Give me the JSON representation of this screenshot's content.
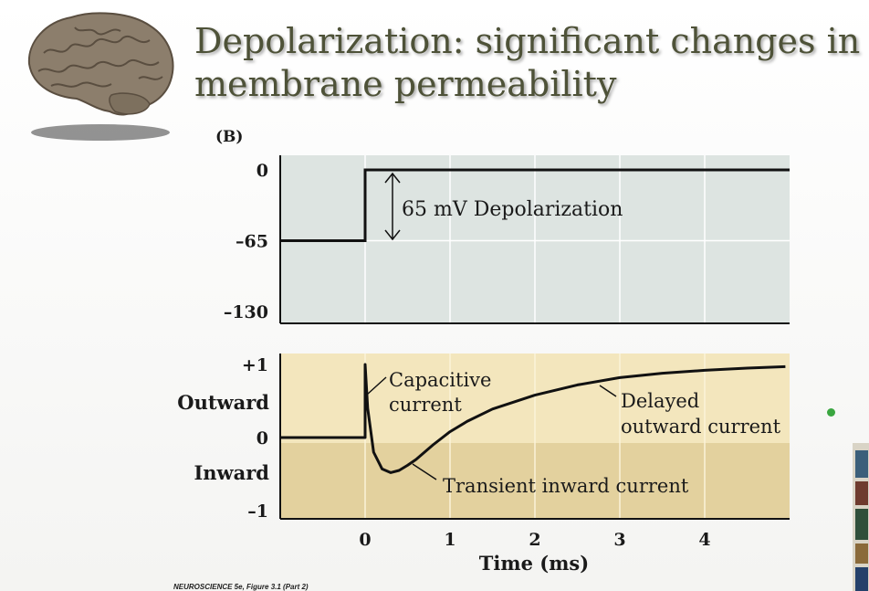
{
  "slide": {
    "title": "Depolarization: significant changes in membrane permeability",
    "caption": "NEUROSCIENCE 5e, Figure 3.1 (Part 2)"
  },
  "icons": {
    "logo": "brain-icon",
    "indicator": "green-dot-icon"
  },
  "colors": {
    "title": "#4e5238",
    "voltage_panel_bg": "#dde4e1",
    "current_upper_bg": "#f3e6bd",
    "current_lower_bg": "#e3d19e",
    "trace": "#111111",
    "indicator": "#3aa640"
  },
  "chart_data": [
    {
      "type": "line",
      "panel_label": "(B)",
      "x": [
        -1,
        0,
        0,
        5
      ],
      "y": [
        -65,
        -65,
        0,
        0
      ],
      "ylim": [
        -130,
        0
      ],
      "yticks": [
        "0",
        "–65",
        "–130"
      ],
      "annotations": [
        "65 mV Depolarization"
      ],
      "grid": true
    },
    {
      "type": "line",
      "x": [
        -1,
        0,
        0,
        0.03,
        0.1,
        0.2,
        0.3,
        0.4,
        0.5,
        0.6,
        0.8,
        1.0,
        1.2,
        1.5,
        2.0,
        2.5,
        3.0,
        3.5,
        4.0,
        4.5,
        4.95
      ],
      "y": [
        0,
        0,
        1,
        0.4,
        -0.2,
        -0.43,
        -0.48,
        -0.45,
        -0.38,
        -0.3,
        -0.1,
        0.08,
        0.22,
        0.39,
        0.58,
        0.72,
        0.82,
        0.88,
        0.92,
        0.95,
        0.97
      ],
      "xlim": [
        -1,
        5
      ],
      "ylim": [
        -1,
        1
      ],
      "xticks": [
        "0",
        "1",
        "2",
        "3",
        "4"
      ],
      "yticks": [
        "+1",
        "0",
        "–1"
      ],
      "y_region_labels": [
        "Outward",
        "Inward"
      ],
      "xlabel": "Time (ms)",
      "annotations": [
        "Capacitive",
        "current",
        "Delayed",
        "outward current",
        "Transient inward current"
      ],
      "grid": true
    }
  ]
}
